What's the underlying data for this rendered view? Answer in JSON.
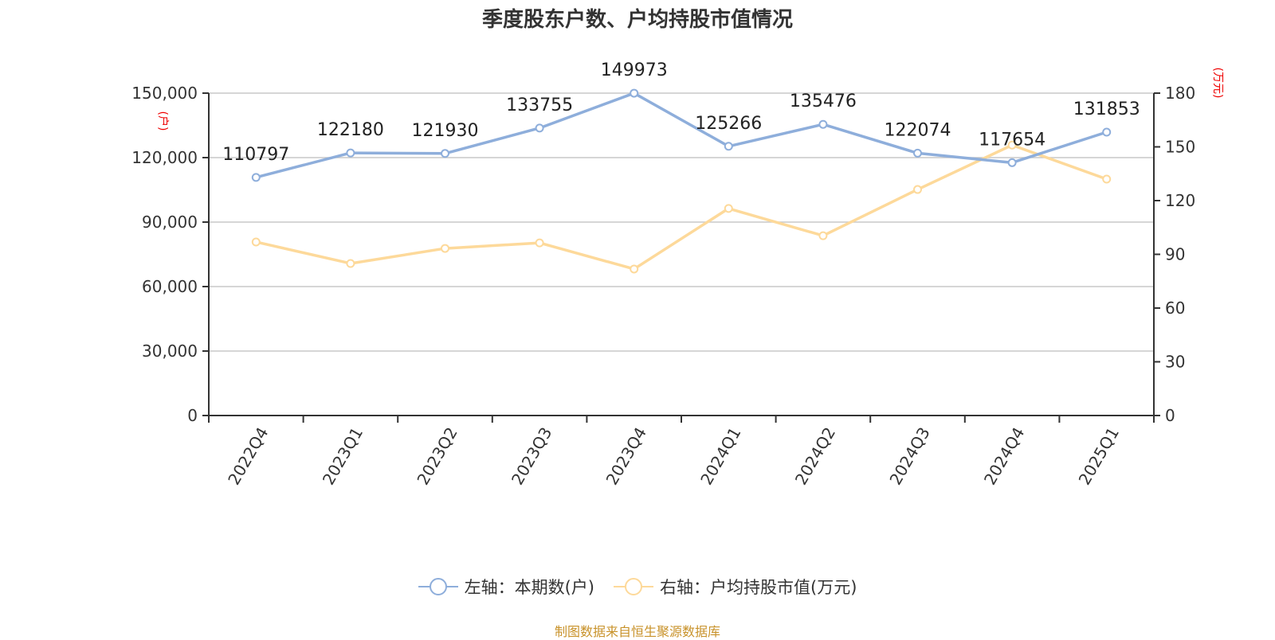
{
  "title": "季度股东户数、户均持股市值情况",
  "legend": [
    {
      "label": "左轴：本期数(户)",
      "color": "#8eaedb"
    },
    {
      "label": "右轴：户均持股市值(万元)",
      "color": "#fdd99a"
    }
  ],
  "source": "制图数据来自恒生聚源数据库",
  "chart_data": {
    "type": "line",
    "title": "季度股东户数、户均持股市值情况",
    "categories": [
      "2022Q4",
      "2023Q1",
      "2023Q2",
      "2023Q3",
      "2023Q4",
      "2024Q1",
      "2024Q2",
      "2024Q3",
      "2024Q4",
      "2025Q1"
    ],
    "series": [
      {
        "name": "左轴：本期数(户)",
        "axis": "left",
        "color": "#8eaedb",
        "values": [
          110797,
          122180,
          121930,
          133755,
          149973,
          125266,
          135476,
          122074,
          117654,
          131853
        ],
        "data_labels": true
      },
      {
        "name": "右轴：户均持股市值(万元)",
        "axis": "right",
        "color": "#fdd99a",
        "values": [
          96.9,
          84.9,
          93.3,
          96.4,
          81.8,
          115.6,
          100.4,
          126.2,
          151.0,
          132.0
        ],
        "data_labels": false
      }
    ],
    "left_axis": {
      "label": "(户)",
      "ylim": [
        0,
        150000
      ],
      "ticks": [
        "0",
        "30,000",
        "60,000",
        "90,000",
        "120,000",
        "150,000"
      ]
    },
    "right_axis": {
      "label": "(万元)",
      "ylim": [
        0,
        180
      ],
      "ticks": [
        "0",
        "30",
        "60",
        "90",
        "120",
        "150",
        "180"
      ]
    },
    "grid": true,
    "legend_position": "bottom"
  }
}
